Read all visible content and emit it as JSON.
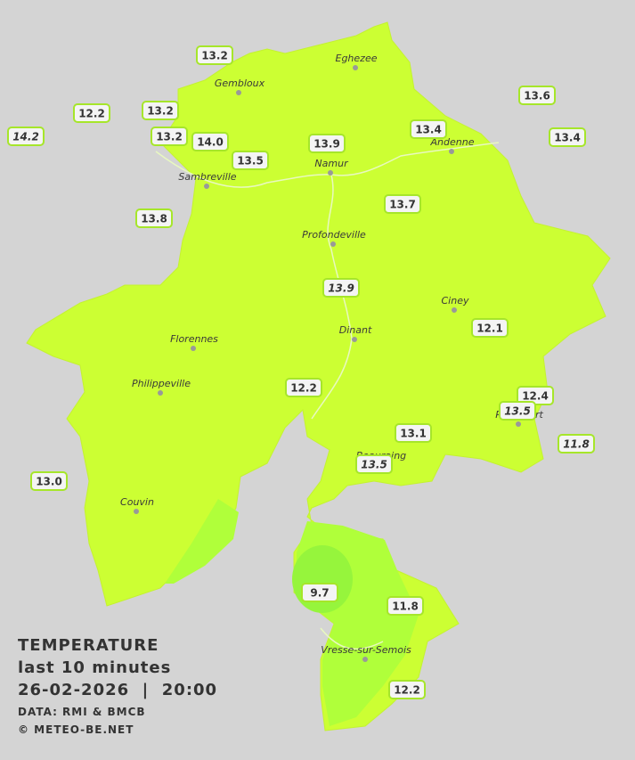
{
  "title": {
    "heading": "TEMPERATURE",
    "subtitle": "last 10 minutes",
    "datetime": "26-02-2026  |  20:00",
    "source": "DATA: RMI & BMCB",
    "credit": "© METEO-BE.NET"
  },
  "cities": [
    "Eghezee",
    "Gembloux",
    "Andenne",
    "Namur",
    "Sambreville",
    "Profondeville",
    "Ciney",
    "Dinant",
    "Florennes",
    "Philippeville",
    "Rochefort",
    "Beauraing",
    "Couvin",
    "Vresse-sur-Semois"
  ],
  "stations": [
    "13.2",
    "12.2",
    "13.2",
    "14.2",
    "13.2",
    "14.0",
    "13.5",
    "13.9",
    "13.4",
    "13.6",
    "13.4",
    "13.8",
    "13.7",
    "13.9",
    "12.1",
    "12.2",
    "12.4",
    "13.5",
    "13.1",
    "11.8",
    "13.5",
    "13.0",
    "9.7",
    "11.8",
    "12.2"
  ]
}
